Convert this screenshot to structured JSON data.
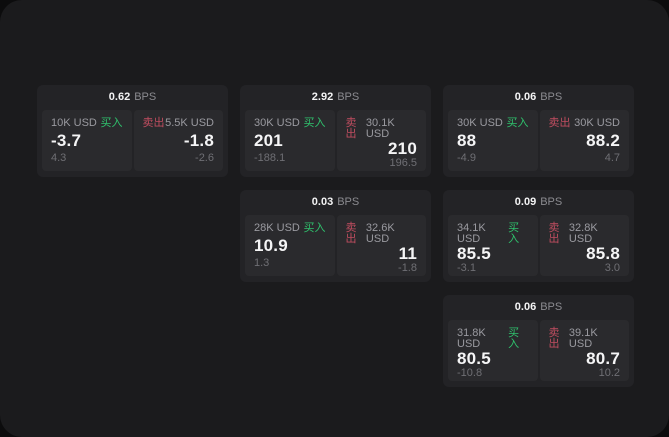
{
  "labels": {
    "buy": "买入",
    "sell": "卖出",
    "bps": "BPS"
  },
  "colors": {
    "outer_background": "#0c0c0d",
    "page_background": "#1b1b1d",
    "card_background": "#232326",
    "panel_background": "#2a2a2d",
    "buy_accent": "#2fc26d",
    "sell_accent": "#c04d60"
  },
  "cards": [
    {
      "bps": "0.62",
      "buy": {
        "size": "10K USD",
        "value": "-3.7",
        "sub": "4.3"
      },
      "sell": {
        "size": "5.5K USD",
        "value": "-1.8",
        "sub": "-2.6"
      }
    },
    {
      "bps": "2.92",
      "buy": {
        "size": "30K USD",
        "value": "201",
        "sub": "-188.1"
      },
      "sell": {
        "size": "30.1K USD",
        "value": "210",
        "sub": "196.5"
      }
    },
    {
      "bps": "0.06",
      "buy": {
        "size": "30K USD",
        "value": "88",
        "sub": "-4.9"
      },
      "sell": {
        "size": "30K USD",
        "value": "88.2",
        "sub": "4.7"
      }
    },
    {
      "bps": "0.03",
      "buy": {
        "size": "28K USD",
        "value": "10.9",
        "sub": "1.3"
      },
      "sell": {
        "size": "32.6K USD",
        "value": "11",
        "sub": "-1.8"
      }
    },
    {
      "bps": "0.09",
      "buy": {
        "size": "34.1K USD",
        "value": "85.5",
        "sub": "-3.1"
      },
      "sell": {
        "size": "32.8K USD",
        "value": "85.8",
        "sub": "3.0"
      }
    },
    {
      "bps": "0.06",
      "buy": {
        "size": "31.8K USD",
        "value": "80.5",
        "sub": "-10.8"
      },
      "sell": {
        "size": "39.1K USD",
        "value": "80.7",
        "sub": "10.2"
      }
    }
  ]
}
